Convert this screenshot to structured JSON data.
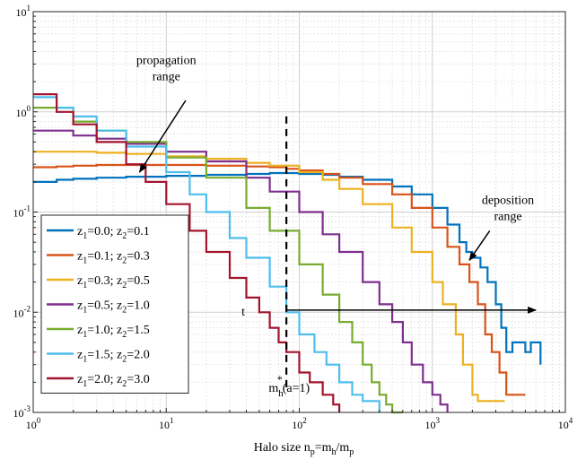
{
  "chart_data": {
    "type": "line",
    "title": "",
    "xlabel": "Halo size n_p=m_h/m_p",
    "xlabel_parts": [
      "Halo size n",
      "p",
      "=m",
      "h",
      "/m",
      "p"
    ],
    "ylabel": "",
    "xscale": "log",
    "yscale": "log",
    "xlim": [
      1,
      10000
    ],
    "ylim": [
      0.001,
      10
    ],
    "grid": true,
    "legend_placement": "left",
    "x_ticks": [
      1,
      10,
      100,
      1000,
      10000
    ],
    "x_tick_labels": [
      [
        "10",
        "0"
      ],
      [
        "10",
        "1"
      ],
      [
        "10",
        "2"
      ],
      [
        "10",
        "3"
      ],
      [
        "10",
        "4"
      ]
    ],
    "y_ticks": [
      0.001,
      0.01,
      0.1,
      1,
      10
    ],
    "y_tick_labels": [
      [
        "10",
        "-3"
      ],
      [
        "10",
        "-2"
      ],
      [
        "10",
        "-1"
      ],
      [
        "10",
        "0"
      ],
      [
        "10",
        "1"
      ]
    ],
    "series": [
      {
        "name": "z1=0.0; z2=0.1",
        "label": [
          "z",
          "1",
          "=0.0; z",
          "2",
          "=0.1"
        ],
        "color": "#0072BD",
        "x": [
          1,
          1.5,
          2,
          3,
          5,
          10,
          20,
          40,
          60,
          80,
          100,
          150,
          200,
          300,
          500,
          700,
          1000,
          1300,
          1600,
          1800,
          2000,
          2300,
          2600,
          3000,
          3300,
          3600,
          4000,
          4500,
          5000,
          5500,
          6000,
          6500
        ],
        "y": [
          0.2,
          0.21,
          0.215,
          0.22,
          0.225,
          0.23,
          0.235,
          0.24,
          0.245,
          0.245,
          0.24,
          0.235,
          0.225,
          0.21,
          0.18,
          0.15,
          0.11,
          0.075,
          0.05,
          0.04,
          0.035,
          0.028,
          0.02,
          0.012,
          0.007,
          0.004,
          0.005,
          0.005,
          0.004,
          0.005,
          0.005,
          0.003
        ]
      },
      {
        "name": "z1=0.1; z2=0.3",
        "label": [
          "z",
          "1",
          "=0.1; z",
          "2",
          "=0.3"
        ],
        "color": "#D95319",
        "x": [
          1,
          1.5,
          2,
          3,
          5,
          10,
          20,
          40,
          60,
          80,
          100,
          150,
          200,
          300,
          500,
          700,
          1000,
          1300,
          1600,
          1900,
          2200,
          2500,
          2800,
          3200,
          3600,
          4000,
          4500,
          5000
        ],
        "y": [
          0.28,
          0.285,
          0.29,
          0.295,
          0.295,
          0.295,
          0.29,
          0.285,
          0.28,
          0.27,
          0.26,
          0.24,
          0.22,
          0.19,
          0.15,
          0.11,
          0.07,
          0.045,
          0.03,
          0.02,
          0.012,
          0.006,
          0.004,
          0.0025,
          0.0015,
          0.0015,
          0.0015,
          0.0015
        ]
      },
      {
        "name": "z1=0.3; z2=0.5",
        "label": [
          "z",
          "1",
          "=0.3; z",
          "2",
          "=0.5"
        ],
        "color": "#EDB120",
        "x": [
          1,
          2,
          3,
          5,
          10,
          20,
          40,
          60,
          100,
          150,
          200,
          300,
          500,
          700,
          1000,
          1200,
          1500,
          1700,
          2000,
          2200,
          2500,
          3000,
          3500
        ],
        "y": [
          0.4,
          0.4,
          0.39,
          0.38,
          0.36,
          0.34,
          0.31,
          0.29,
          0.25,
          0.21,
          0.17,
          0.12,
          0.07,
          0.04,
          0.02,
          0.012,
          0.006,
          0.003,
          0.0015,
          0.0013,
          0.0013,
          0.0013,
          0.0013
        ]
      },
      {
        "name": "z1=0.5; z2=1.0",
        "label": [
          "z",
          "1",
          "=0.5; z",
          "2",
          "=1.0"
        ],
        "color": "#7E2F8E",
        "x": [
          1,
          2,
          3,
          5,
          10,
          20,
          40,
          60,
          100,
          150,
          200,
          300,
          400,
          500,
          600,
          700,
          850,
          1000,
          1150,
          1300
        ],
        "y": [
          0.65,
          0.58,
          0.54,
          0.48,
          0.4,
          0.32,
          0.22,
          0.16,
          0.1,
          0.06,
          0.04,
          0.02,
          0.012,
          0.008,
          0.005,
          0.003,
          0.002,
          0.0015,
          0.0012,
          0.001
        ]
      },
      {
        "name": "z1=1.0; z2=1.5",
        "label": [
          "z",
          "1",
          "=1.0; z",
          "2",
          "=1.5"
        ],
        "color": "#77AC30",
        "x": [
          1,
          2,
          3,
          5,
          10,
          20,
          40,
          60,
          100,
          150,
          200,
          250,
          300,
          350,
          400,
          450,
          500,
          600
        ],
        "y": [
          1.1,
          0.8,
          0.65,
          0.5,
          0.35,
          0.22,
          0.11,
          0.065,
          0.03,
          0.015,
          0.008,
          0.005,
          0.003,
          0.002,
          0.0015,
          0.0012,
          0.001,
          0.001
        ]
      },
      {
        "name": "z1=1.5; z2=2.0",
        "label": [
          "z",
          "1",
          "=1.5; z",
          "2",
          "=2.0"
        ],
        "color": "#4DBEEE",
        "x": [
          1,
          1.5,
          2,
          3,
          5,
          10,
          15,
          20,
          30,
          40,
          60,
          80,
          100,
          130,
          160,
          200,
          250,
          300,
          350,
          400
        ],
        "y": [
          1.4,
          1.1,
          0.9,
          0.65,
          0.45,
          0.25,
          0.15,
          0.1,
          0.055,
          0.035,
          0.018,
          0.01,
          0.006,
          0.004,
          0.003,
          0.002,
          0.0015,
          0.0013,
          0.0013,
          0.001
        ]
      },
      {
        "name": "z1=2.0; z2=3.0",
        "label": [
          "z",
          "1",
          "=2.0; z",
          "2",
          "=3.0"
        ],
        "color": "#A2142F",
        "x": [
          1,
          1.5,
          2,
          3,
          5,
          7,
          10,
          15,
          20,
          30,
          40,
          50,
          60,
          70,
          80,
          100,
          120,
          150,
          180,
          200
        ],
        "y": [
          1.5,
          1.0,
          0.75,
          0.5,
          0.3,
          0.2,
          0.12,
          0.065,
          0.04,
          0.022,
          0.014,
          0.01,
          0.007,
          0.005,
          0.004,
          0.0025,
          0.002,
          0.0015,
          0.0012,
          0.001
        ]
      }
    ],
    "annotations": [
      {
        "type": "text",
        "lines": [
          "propagation",
          "range"
        ],
        "at": [
          10,
          3
        ]
      },
      {
        "type": "arrow",
        "from": [
          14,
          1.3
        ],
        "to": [
          6.3,
          0.25
        ]
      },
      {
        "type": "text",
        "lines": [
          "deposition",
          "range"
        ],
        "at": [
          3700,
          0.12
        ]
      },
      {
        "type": "arrow",
        "from": [
          2700,
          0.065
        ],
        "to": [
          1900,
          0.033
        ]
      },
      {
        "type": "vline",
        "x": 80,
        "y_range": [
          0.001,
          0.9
        ],
        "style": "dashed"
      },
      {
        "type": "arrow",
        "from": [
          80,
          0.0105
        ],
        "to": [
          6000,
          0.0105
        ],
        "label": "t"
      },
      {
        "type": "label",
        "text_parts": [
          "m",
          "h",
          "*",
          "(a=1)"
        ],
        "at": [
          84,
          0.0016
        ]
      }
    ]
  }
}
